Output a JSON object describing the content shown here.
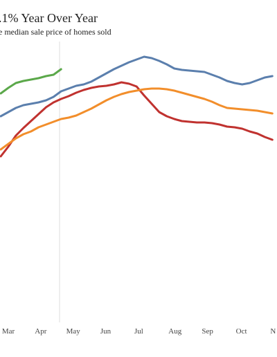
{
  "chart_data": {
    "type": "line",
    "title": ".1% Year Over Year",
    "subtitle": "e median sale price of homes sold",
    "x": [
      8,
      9,
      10,
      11,
      12,
      13,
      14,
      15,
      16,
      17,
      18,
      19,
      20,
      21,
      22,
      23,
      24,
      25,
      26,
      27,
      28,
      29,
      30,
      31,
      32,
      33,
      34,
      35,
      36,
      37,
      38,
      39,
      40,
      41,
      42,
      43,
      44
    ],
    "xlim": [
      7.9,
      44.8
    ],
    "xticks": [
      {
        "value": 9,
        "label": "Mar"
      },
      {
        "value": 13.3,
        "label": "Apr"
      },
      {
        "value": 17.6,
        "label": "May"
      },
      {
        "value": 21.9,
        "label": "Jun"
      },
      {
        "value": 26.3,
        "label": "Jul"
      },
      {
        "value": 31.1,
        "label": "Aug"
      },
      {
        "value": 35.4,
        "label": "Sep"
      },
      {
        "value": 39.9,
        "label": "Oct"
      },
      {
        "value": 44.1,
        "label": "N"
      }
    ],
    "ylim": [
      0,
      100
    ],
    "series": [
      {
        "color": "#5ba84a",
        "values": [
          81.25,
          83.25,
          85,
          85.75,
          86.25,
          86.75,
          87.5,
          88,
          90,
          null,
          null,
          null,
          null,
          null,
          null,
          null,
          null,
          null,
          null,
          null,
          null,
          null,
          null,
          null,
          null,
          null,
          null,
          null,
          null,
          null,
          null,
          null,
          null,
          null,
          null,
          null,
          null
        ]
      },
      {
        "color": "#5b7fad",
        "values": [
          73,
          74.5,
          76,
          77,
          77.5,
          78,
          78.75,
          80,
          82,
          83,
          84,
          84.5,
          85.5,
          87,
          88.5,
          90,
          91.25,
          92.5,
          93.5,
          94.5,
          94,
          93,
          91.75,
          90.25,
          89.75,
          89.5,
          89.25,
          89,
          88,
          87,
          85.75,
          85,
          84.5,
          85,
          86,
          87,
          87.5
        ]
      },
      {
        "color": "#c0322f",
        "values": [
          58.5,
          62,
          66,
          68.75,
          71.25,
          73.75,
          76.25,
          78,
          79.25,
          80.25,
          81.5,
          82.5,
          83.25,
          83.75,
          84,
          84.5,
          85.25,
          84.75,
          83.75,
          80.5,
          77.5,
          74.5,
          73,
          72,
          71.25,
          71,
          70.75,
          70.75,
          70.5,
          70,
          69.25,
          69,
          68.5,
          67.5,
          66.75,
          65.5,
          64.5
        ]
      },
      {
        "color": "#f28e2b",
        "values": [
          61,
          63,
          65,
          66.5,
          67.5,
          69,
          70,
          71,
          72,
          72.5,
          73.25,
          74.5,
          75.75,
          77.25,
          78.75,
          80,
          81,
          81.75,
          82.25,
          82.75,
          83,
          83,
          82.75,
          82.25,
          81.5,
          80.75,
          80,
          79.25,
          78.25,
          77,
          76,
          75.75,
          75.5,
          75.25,
          75,
          74.5,
          74
        ]
      }
    ]
  }
}
